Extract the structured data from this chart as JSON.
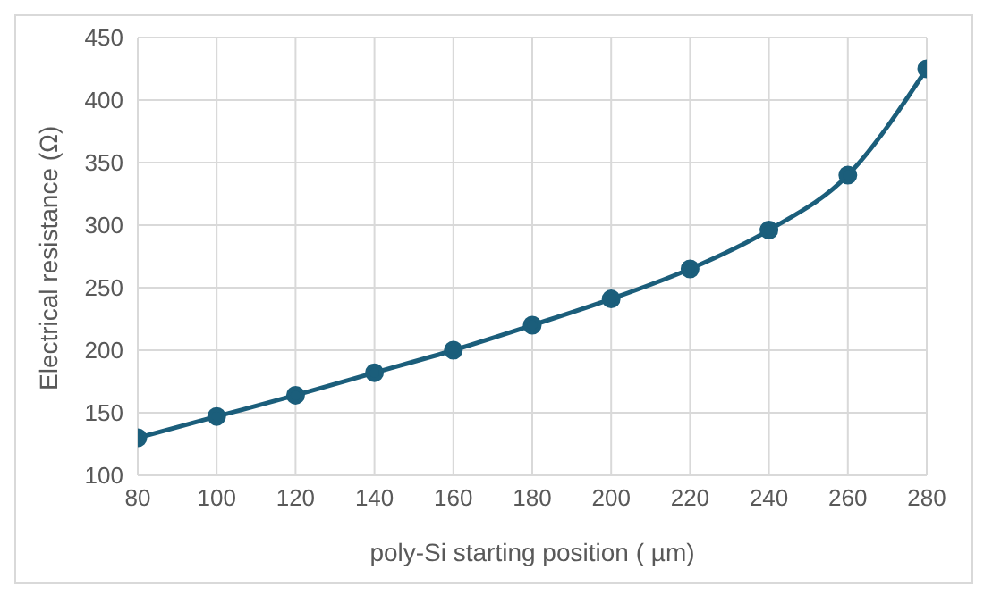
{
  "chart_data": {
    "type": "line",
    "xlabel": "poly-Si starting position ( µm)",
    "ylabel": "Electrical resistance (Ω)",
    "x": [
      80,
      100,
      120,
      140,
      160,
      180,
      200,
      220,
      240,
      260,
      280
    ],
    "series": [
      {
        "color": "#1b5e7b",
        "values": [
          130,
          147,
          164,
          182,
          200,
          220,
          241,
          265,
          296,
          340,
          425
        ]
      }
    ],
    "xlim": [
      80,
      280
    ],
    "xticks": [
      80,
      100,
      120,
      140,
      160,
      180,
      200,
      220,
      240,
      260,
      280
    ],
    "ylim": [
      100,
      450
    ],
    "yticks": [
      100,
      150,
      200,
      250,
      300,
      350,
      400,
      450
    ],
    "grid": true,
    "marker": "circle",
    "line_style": "solid",
    "legend": false
  }
}
